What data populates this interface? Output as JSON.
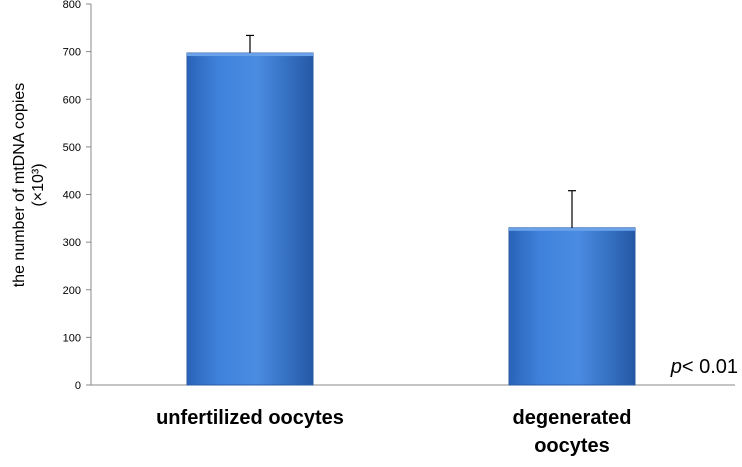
{
  "chart_data": {
    "type": "bar",
    "categories": [
      "unfertilized oocytes",
      "degenerated oocytes"
    ],
    "category_label_lines": [
      [
        "unfertilized oocytes"
      ],
      [
        "degenerated",
        "oocytes"
      ]
    ],
    "values": [
      697,
      330
    ],
    "errors": [
      37,
      78
    ],
    "title": "",
    "xlabel": "",
    "ylabel": "the number of mtDNA copies",
    "ylabel_line2": "(×10³)",
    "ylim": [
      0,
      800
    ],
    "yticks": [
      0,
      100,
      200,
      300,
      400,
      500,
      600,
      700,
      800
    ],
    "annotation": {
      "italic": "p",
      "text": "< 0.01"
    },
    "bar_color": "#3a7bd5",
    "grid": false
  }
}
